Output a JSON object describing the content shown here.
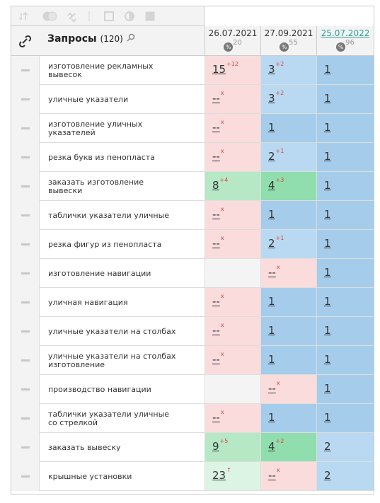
{
  "header": {
    "title": "Запросы",
    "count": "(120)",
    "dates": [
      {
        "date": "26.07.2021",
        "badge": "20"
      },
      {
        "date": "27.09.2021",
        "badge": "55"
      },
      {
        "date": "25.07.2022",
        "badge": "96"
      }
    ]
  },
  "table": {
    "rows": [
      {
        "query": "изготовление рекламных вывесок",
        "cells": [
          {
            "value": "15",
            "change": "+12",
            "color": "#fbdcdc"
          },
          {
            "value": "3",
            "change": "+2",
            "color": "#b8d9f1"
          },
          {
            "value": "1",
            "color": "#a5cdeb"
          }
        ]
      },
      {
        "query": "уличные указатели",
        "cells": [
          {
            "value": "--",
            "change": "x",
            "color": "#fbdcdc"
          },
          {
            "value": "3",
            "change": "+2",
            "color": "#b8d9f1"
          },
          {
            "value": "1",
            "color": "#a5cdeb"
          }
        ]
      },
      {
        "query": "изготовление уличных указателей",
        "cells": [
          {
            "value": "--",
            "change": "x",
            "color": "#fbdcdc"
          },
          {
            "value": "1",
            "color": "#a5cdeb"
          },
          {
            "value": "1",
            "color": "#a5cdeb"
          }
        ]
      },
      {
        "query": "резка букв из пенопласта",
        "cells": [
          {
            "value": "--",
            "change": "x",
            "color": "#fbdcdc"
          },
          {
            "value": "2",
            "change": "+1",
            "color": "#b8d9f1"
          },
          {
            "value": "1",
            "color": "#a5cdeb"
          }
        ]
      },
      {
        "query": "заказать изготовление вывески",
        "cells": [
          {
            "value": "8",
            "change": "+4",
            "color": "#b6e8c6"
          },
          {
            "value": "4",
            "change": "+3",
            "color": "#90deae"
          },
          {
            "value": "1",
            "color": "#a5cdeb"
          }
        ]
      },
      {
        "query": "таблички указатели уличные",
        "cells": [
          {
            "value": "--",
            "change": "x",
            "color": "#fbdcdc"
          },
          {
            "value": "1",
            "color": "#a5cdeb"
          },
          {
            "value": "1",
            "color": "#a5cdeb"
          }
        ]
      },
      {
        "query": "резка фигур из пенопласта",
        "cells": [
          {
            "value": "--",
            "change": "x",
            "color": "#fbdcdc"
          },
          {
            "value": "2",
            "change": "+1",
            "color": "#b8d9f1"
          },
          {
            "value": "1",
            "color": "#a5cdeb"
          }
        ]
      },
      {
        "query": "изготовление навигации",
        "cells": [
          {
            "color": "#f4f4f4"
          },
          {
            "value": "--",
            "change": "x",
            "color": "#fbdcdc"
          },
          {
            "value": "1",
            "color": "#a5cdeb"
          }
        ]
      },
      {
        "query": "уличная навигация",
        "cells": [
          {
            "value": "--",
            "change": "x",
            "color": "#fbdcdc"
          },
          {
            "value": "1",
            "color": "#a5cdeb"
          },
          {
            "value": "1",
            "color": "#a5cdeb"
          }
        ]
      },
      {
        "query": "уличные указатели на столбах",
        "cells": [
          {
            "value": "--",
            "change": "x",
            "color": "#fbdcdc"
          },
          {
            "value": "1",
            "color": "#a5cdeb"
          },
          {
            "value": "1",
            "color": "#a5cdeb"
          }
        ]
      },
      {
        "query": "уличные указатели на столбах изготовление",
        "cells": [
          {
            "value": "--",
            "change": "x",
            "color": "#fbdcdc"
          },
          {
            "value": "1",
            "color": "#a5cdeb"
          },
          {
            "value": "1",
            "color": "#a5cdeb"
          }
        ]
      },
      {
        "query": "производство навигации",
        "cells": [
          {
            "color": "#f4f4f4"
          },
          {
            "value": "--",
            "change": "x",
            "color": "#fbdcdc"
          },
          {
            "value": "1",
            "color": "#a5cdeb"
          }
        ]
      },
      {
        "query": "таблички указатели уличные со стрелкой",
        "cells": [
          {
            "value": "--",
            "change": "x",
            "color": "#fbdcdc"
          },
          {
            "value": "1",
            "color": "#a5cdeb"
          },
          {
            "value": "1",
            "color": "#a5cdeb"
          }
        ]
      },
      {
        "query": "заказать вывеску",
        "cells": [
          {
            "value": "9",
            "change": "+5",
            "color": "#b6e8c6"
          },
          {
            "value": "4",
            "change": "+2",
            "color": "#90deae"
          },
          {
            "value": "2",
            "color": "#b8d9f1"
          }
        ]
      },
      {
        "query": "крышные установки",
        "cells": [
          {
            "value": "23",
            "change": "↑",
            "color": "#dcf4e4"
          },
          {
            "value": "--",
            "change": "x",
            "color": "#fbdcdc"
          },
          {
            "value": "2",
            "color": "#b8d9f1"
          }
        ]
      }
    ]
  }
}
